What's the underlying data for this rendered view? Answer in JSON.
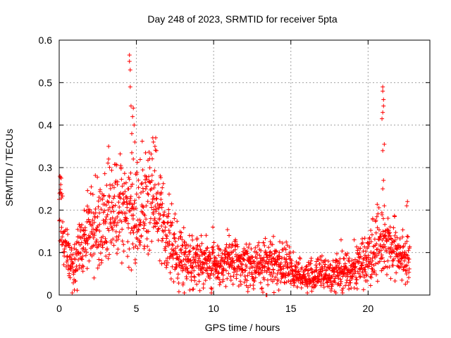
{
  "chart_data": {
    "type": "scatter",
    "title": "Day 248 of 2023, SRMTID for receiver 5pta",
    "xlabel": "GPS time / hours",
    "ylabel": "SRMTID / TECUs",
    "xlim": [
      0,
      24
    ],
    "ylim": [
      0,
      0.6
    ],
    "x_ticks": [
      0,
      5,
      10,
      15,
      20
    ],
    "y_ticks": [
      0,
      0.1,
      0.2,
      0.3,
      0.4,
      0.5,
      0.6
    ],
    "x_tick_labels": [
      "0",
      "5",
      "10",
      "15",
      "20"
    ],
    "y_tick_labels": [
      "0",
      "0.1",
      "0.2",
      "0.3",
      "0.4",
      "0.5",
      "0.6"
    ],
    "grid": true,
    "marker": "+",
    "series_color": "#ff0000",
    "series": [
      {
        "name": "SRMTID",
        "trend": [
          [
            0.0,
            0.2
          ],
          [
            0.3,
            0.13
          ],
          [
            0.7,
            0.08
          ],
          [
            1.0,
            0.07
          ],
          [
            1.5,
            0.13
          ],
          [
            2.0,
            0.15
          ],
          [
            2.5,
            0.17
          ],
          [
            3.0,
            0.18
          ],
          [
            3.5,
            0.2
          ],
          [
            4.0,
            0.19
          ],
          [
            4.5,
            0.2
          ],
          [
            5.0,
            0.18
          ],
          [
            5.5,
            0.21
          ],
          [
            6.0,
            0.22
          ],
          [
            6.5,
            0.2
          ],
          [
            7.0,
            0.14
          ],
          [
            7.5,
            0.1
          ],
          [
            8.0,
            0.09
          ],
          [
            9.0,
            0.08
          ],
          [
            10.0,
            0.07
          ],
          [
            11.0,
            0.08
          ],
          [
            12.0,
            0.07
          ],
          [
            13.0,
            0.07
          ],
          [
            14.0,
            0.08
          ],
          [
            14.5,
            0.07
          ],
          [
            15.0,
            0.06
          ],
          [
            16.0,
            0.04
          ],
          [
            17.0,
            0.05
          ],
          [
            18.0,
            0.05
          ],
          [
            19.0,
            0.06
          ],
          [
            20.0,
            0.09
          ],
          [
            20.5,
            0.12
          ],
          [
            21.0,
            0.13
          ],
          [
            21.5,
            0.11
          ],
          [
            22.0,
            0.1
          ],
          [
            22.5,
            0.09
          ],
          [
            22.7,
            0.07
          ]
        ],
        "spikes": [
          [
            0.05,
            0.28
          ],
          [
            0.1,
            0.26
          ],
          [
            3.2,
            0.35
          ],
          [
            3.2,
            0.32
          ],
          [
            4.55,
            0.565
          ],
          [
            4.55,
            0.55
          ],
          [
            4.6,
            0.53
          ],
          [
            4.6,
            0.49
          ],
          [
            4.65,
            0.445
          ],
          [
            4.8,
            0.44
          ],
          [
            4.75,
            0.42
          ],
          [
            4.85,
            0.4
          ],
          [
            4.7,
            0.38
          ],
          [
            4.9,
            0.36
          ],
          [
            4.7,
            0.335
          ],
          [
            4.8,
            0.32
          ],
          [
            6.1,
            0.36
          ],
          [
            6.2,
            0.35
          ],
          [
            6.25,
            0.37
          ],
          [
            6.3,
            0.34
          ],
          [
            9.95,
            0.16
          ],
          [
            11.0,
            0.14
          ],
          [
            13.4,
            0.0
          ],
          [
            13.45,
            0.0
          ],
          [
            18.25,
            0.13
          ],
          [
            19.1,
            0.13
          ],
          [
            20.3,
            0.18
          ],
          [
            20.95,
            0.49
          ],
          [
            20.95,
            0.48
          ],
          [
            21.0,
            0.46
          ],
          [
            21.0,
            0.445
          ],
          [
            20.95,
            0.43
          ],
          [
            20.9,
            0.415
          ],
          [
            21.05,
            0.355
          ],
          [
            20.95,
            0.34
          ],
          [
            21.0,
            0.27
          ],
          [
            20.95,
            0.25
          ],
          [
            21.05,
            0.21
          ],
          [
            22.5,
            0.21
          ],
          [
            22.55,
            0.22
          ]
        ]
      }
    ]
  }
}
